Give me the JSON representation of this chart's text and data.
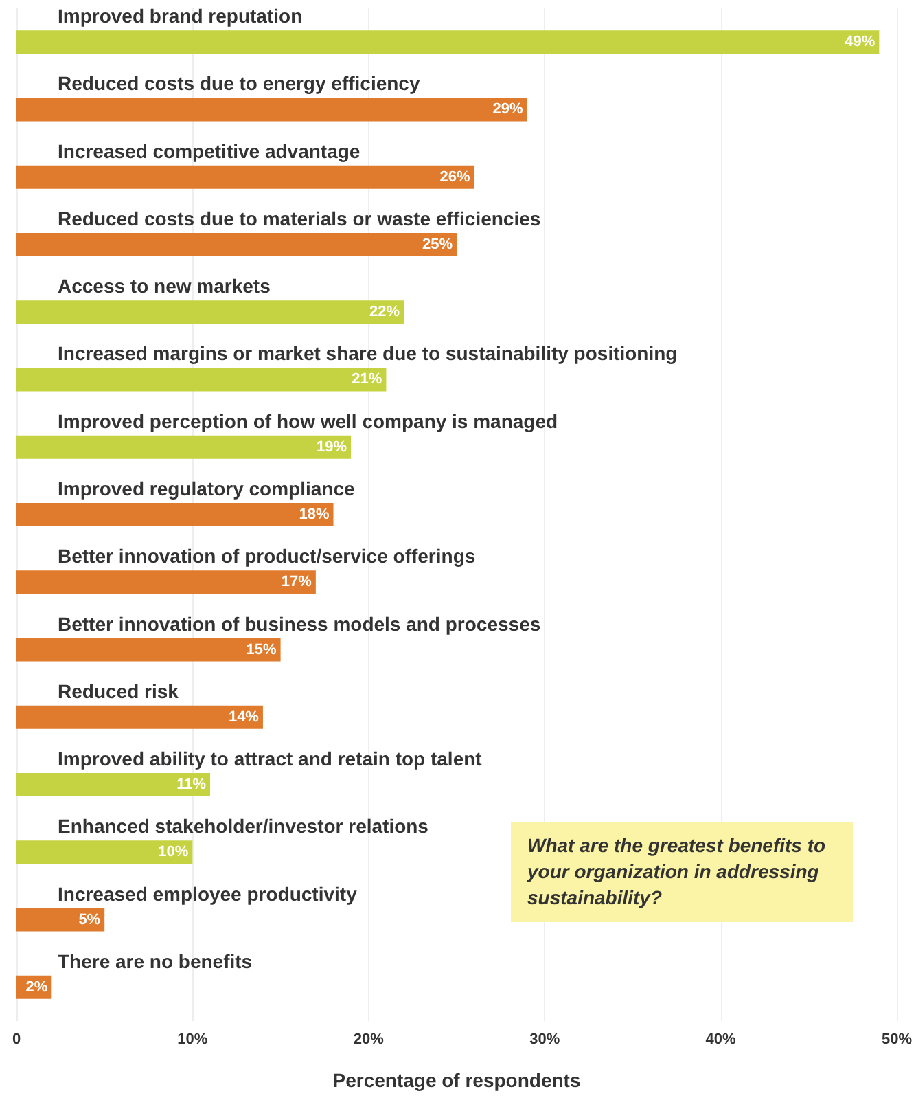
{
  "chart_data": {
    "type": "bar",
    "orientation": "horizontal",
    "xlabel": "Percentage of respondents",
    "categories": [
      "Improved brand reputation",
      "Reduced costs due to energy efficiency",
      "Increased competitive advantage",
      "Reduced costs due to materials or waste efficiencies",
      "Access to new markets",
      "Increased margins or market share due to sustainability positioning",
      "Improved perception of how well company is managed",
      "Improved regulatory compliance",
      "Better innovation of product/service offerings",
      "Better innovation of business models and processes",
      "Reduced risk",
      "Improved ability to attract and retain top talent",
      "Enhanced stakeholder/investor relations",
      "Increased employee productivity",
      "There are no benefits"
    ],
    "values": [
      49,
      29,
      26,
      25,
      22,
      21,
      19,
      18,
      17,
      15,
      14,
      11,
      10,
      5,
      2
    ],
    "value_labels": [
      "49%",
      "29%",
      "26%",
      "25%",
      "22%",
      "21%",
      "19%",
      "18%",
      "17%",
      "15%",
      "14%",
      "11%",
      "10%",
      "5%",
      "2%"
    ],
    "colors": [
      "#c5d342",
      "#e07b2d",
      "#e07b2d",
      "#e07b2d",
      "#c5d342",
      "#c5d342",
      "#c5d342",
      "#e07b2d",
      "#e07b2d",
      "#e07b2d",
      "#e07b2d",
      "#c5d342",
      "#c5d342",
      "#e07b2d",
      "#e07b2d"
    ],
    "xlim": [
      0,
      50
    ],
    "xticks": [
      {
        "value": 0,
        "label": "0"
      },
      {
        "value": 10,
        "label": "10%"
      },
      {
        "value": 20,
        "label": "20%"
      },
      {
        "value": 30,
        "label": "30%"
      },
      {
        "value": 40,
        "label": "40%"
      },
      {
        "value": 50,
        "label": "50%"
      }
    ],
    "grid": "x",
    "annotations": [
      "What are the greatest benefits to your organization in addressing sustainability?"
    ]
  }
}
